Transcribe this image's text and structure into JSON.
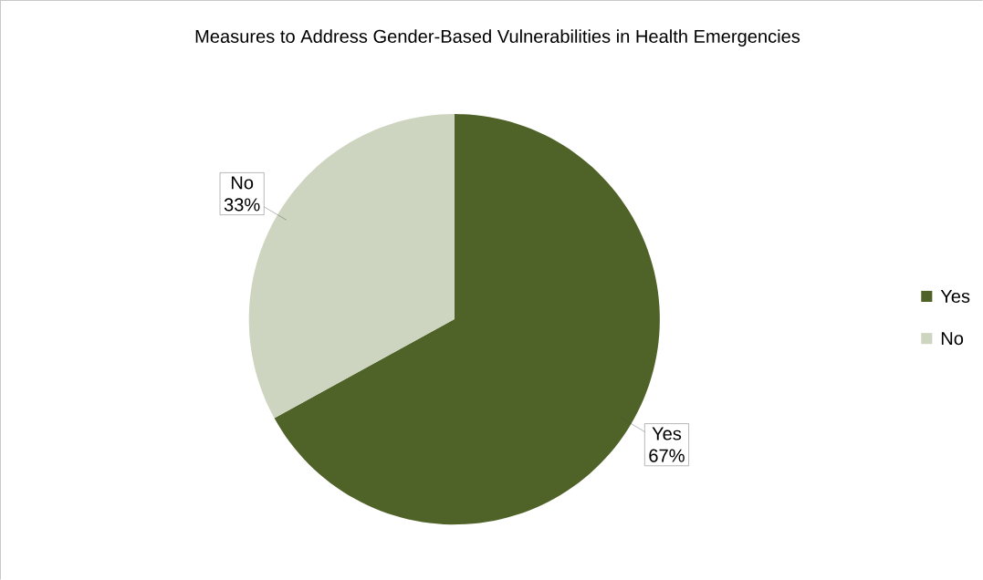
{
  "chart_data": {
    "type": "pie",
    "title": "Measures to Address Gender-Based Vulnerabilities in Health Emergencies",
    "categories": [
      "Yes",
      "No"
    ],
    "values": [
      67,
      33
    ],
    "colors": [
      "#4f6228",
      "#cdd4bf"
    ],
    "value_labels": [
      "67%",
      "33%"
    ],
    "legend": "right"
  }
}
